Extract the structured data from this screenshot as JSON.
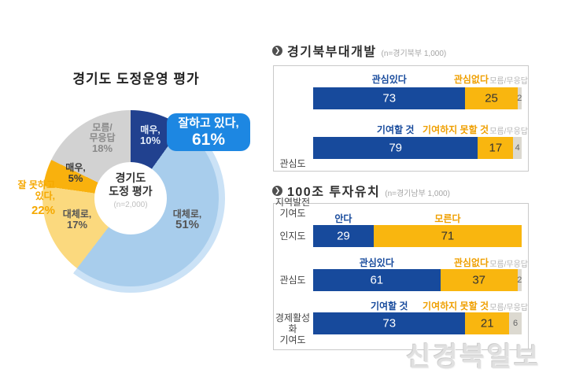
{
  "colors": {
    "navy": "#174a9c",
    "donut_navy": "#21418f",
    "light_blue": "#a8cdec",
    "halo_blue": "#cbe2f6",
    "light_yellow": "#fbd97e",
    "orange": "#f9b10d",
    "bar_yellow": "#f9b60f",
    "bar_gray": "#dcd9d0",
    "donut_gray": "#d2d2d2",
    "callout_blue": "#1d87e2",
    "accent_orange_text": "#ef9f00",
    "negative_text": "#f5a800"
  },
  "watermark": "신경북일보",
  "chart_data": [
    {
      "type": "pie",
      "title": "경기도 도정운영 평가",
      "center": {
        "label": "경기도\n도정 평가",
        "sample": "(n=2,000)"
      },
      "segments": [
        {
          "label": "매우,",
          "pct": "10%",
          "value": 10,
          "color_key": "donut_navy"
        },
        {
          "label": "대체로,",
          "pct": "51%",
          "value": 51,
          "color_key": "light_blue"
        },
        {
          "label": "대체로,",
          "pct": "17%",
          "value": 17,
          "color_key": "light_yellow"
        },
        {
          "label": "매우,",
          "pct": "5%",
          "value": 5,
          "color_key": "orange"
        },
        {
          "label": "모름/\n무응답",
          "pct": "18%",
          "value": 18,
          "color_key": "donut_gray"
        }
      ],
      "callout_positive": {
        "label": "잘하고 있다,",
        "value": "61%"
      },
      "callout_negative": {
        "label": "잘 못하고\n있다,",
        "value": "22%"
      }
    },
    {
      "type": "bar",
      "title": "경기북부대개발",
      "sample": "(n=경기북부 1,000)",
      "rows": [
        {
          "label": "관심도",
          "legend_yes": "관심있다",
          "legend_no": "관심없다",
          "note": "모름/무응답",
          "values": [
            73,
            25,
            2
          ]
        },
        {
          "label": "지역발전\n기여도",
          "legend_yes": "기여할 것",
          "legend_no": "기여하지 못할 것",
          "note": "모름/무응답",
          "values": [
            79,
            17,
            4
          ]
        }
      ]
    },
    {
      "type": "bar",
      "title": "100조 투자유치",
      "sample": "(n=경기남부 1,000)",
      "rows": [
        {
          "label": "인지도",
          "legend_yes": "안다",
          "legend_no": "모른다",
          "note": "",
          "values": [
            29,
            71
          ]
        },
        {
          "label": "관심도",
          "legend_yes": "관심있다",
          "legend_no": "관심없다",
          "note": "모름/무응답",
          "values": [
            61,
            37,
            2
          ]
        },
        {
          "label": "경제활성화\n기여도",
          "legend_yes": "기여할 것",
          "legend_no": "기여하지 못할 것",
          "note": "모름/무응답",
          "values": [
            73,
            21,
            6
          ]
        }
      ]
    }
  ]
}
